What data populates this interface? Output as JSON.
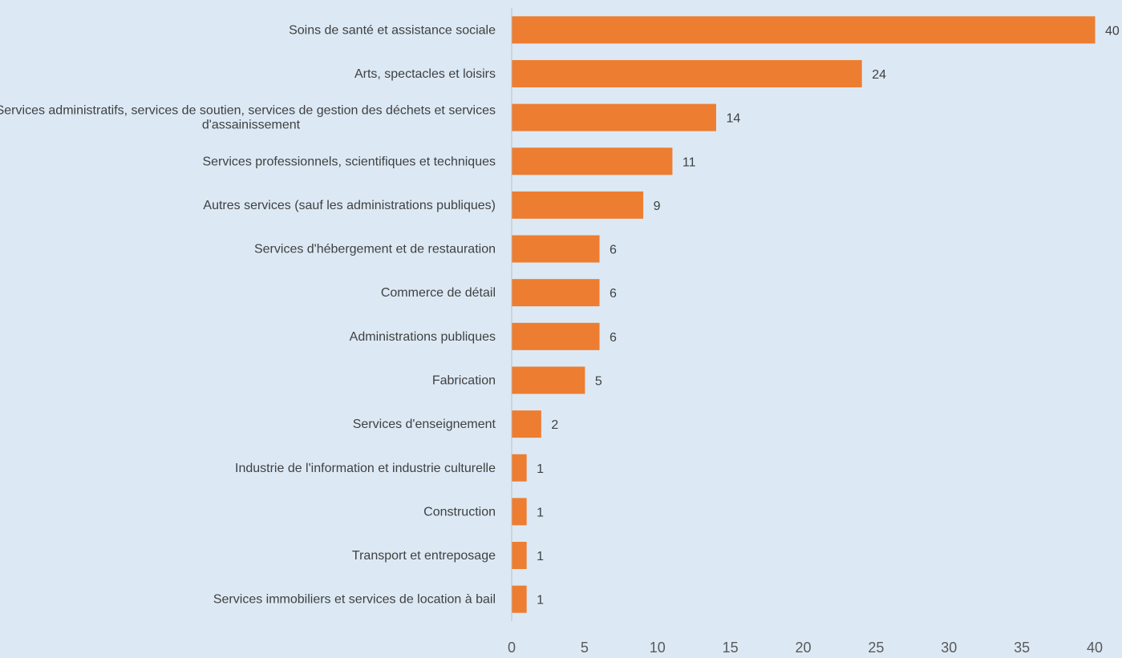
{
  "chart_data": {
    "type": "bar",
    "orientation": "horizontal",
    "title": "",
    "xlabel": "",
    "ylabel": "",
    "categories": [
      [
        "Soins de santé et assistance sociale"
      ],
      [
        "Arts, spectacles et loisirs"
      ],
      [
        "Services administratifs, services de soutien, services de gestion des déchets et services",
        "d'assainissement"
      ],
      [
        "Services professionnels, scientifiques et techniques"
      ],
      [
        "Autres services (sauf les administrations publiques)"
      ],
      [
        "Services d'hébergement et de restauration"
      ],
      [
        "Commerce de détail"
      ],
      [
        "Administrations publiques"
      ],
      [
        "Fabrication"
      ],
      [
        "Services d'enseignement"
      ],
      [
        "Industrie de l'information et industrie culturelle"
      ],
      [
        "Construction"
      ],
      [
        "Transport et entreposage"
      ],
      [
        "Services immobiliers et services de location à bail"
      ]
    ],
    "values": [
      40,
      24,
      14,
      11,
      9,
      6,
      6,
      6,
      5,
      2,
      1,
      1,
      1,
      1
    ],
    "xlim": [
      0,
      40
    ],
    "xticks": [
      0,
      5,
      10,
      15,
      20,
      25,
      30,
      35,
      40
    ],
    "grid": false,
    "legend": "none",
    "colors": {
      "bar": "#ed7d31",
      "background": "#dce9f5",
      "axis": "#bfbfbf",
      "text": "#404040"
    }
  }
}
